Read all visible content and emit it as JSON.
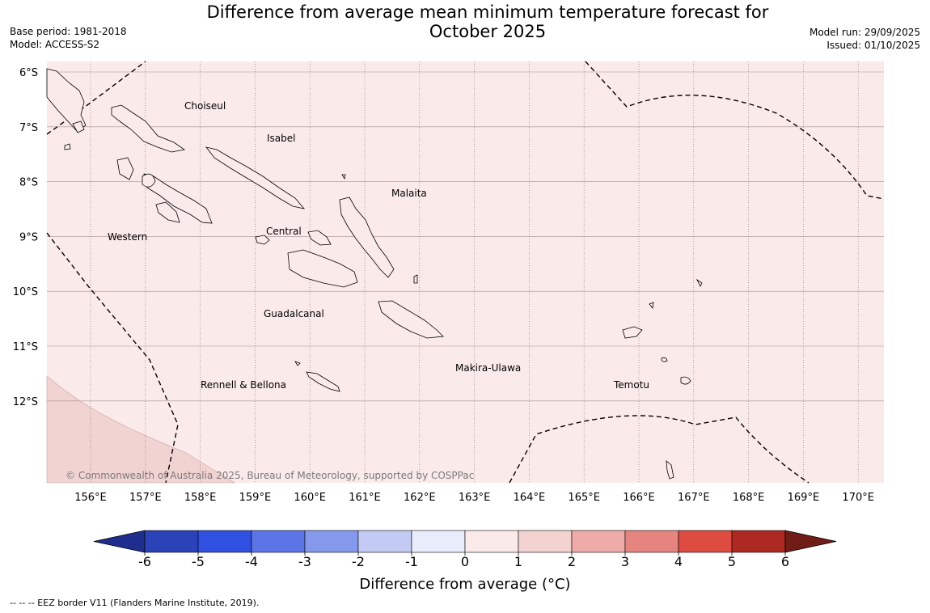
{
  "title": {
    "line1": "Difference from average mean minimum temperature forecast for",
    "line2": "October 2025"
  },
  "meta_left": {
    "base_period": "Base period: 1981-2018",
    "model": "Model: ACCESS-S2"
  },
  "meta_right": {
    "model_run": "Model run: 29/09/2025",
    "issued": "Issued: 01/10/2025"
  },
  "map": {
    "background_color": "#fbeaea",
    "anomaly_shade_color": "#f1d3d2",
    "lat_labels": [
      "6°S",
      "7°S",
      "8°S",
      "9°S",
      "10°S",
      "11°S",
      "12°S"
    ],
    "lon_labels": [
      "156°E",
      "157°E",
      "158°E",
      "159°E",
      "160°E",
      "161°E",
      "162°E",
      "163°E",
      "164°E",
      "165°E",
      "166°E",
      "167°E",
      "168°E",
      "169°E",
      "170°E"
    ],
    "region_labels": [
      "Choiseul",
      "Isabel",
      "Malaita",
      "Western",
      "Central",
      "Guadalcanal",
      "Makira-Ulawa",
      "Rennell & Bellona",
      "Temotu"
    ],
    "copyright": "© Commonwealth of Australia 2025, Bureau of Meteorology, supported by COSPPac"
  },
  "colorbar": {
    "ticks": [
      "-6",
      "-5",
      "-4",
      "-3",
      "-2",
      "-1",
      "0",
      "1",
      "2",
      "3",
      "4",
      "5",
      "6"
    ],
    "colors": [
      "#1f2d8f",
      "#2a43b8",
      "#2f50e0",
      "#5b75e6",
      "#8499ec",
      "#c3cbf5",
      "#e8ecfb",
      "#fbeaea",
      "#f2d3d1",
      "#eeabaa",
      "#e6857f",
      "#dd4b41",
      "#ad2a22",
      "#701c17"
    ],
    "label": "Difference from average (°C)"
  },
  "footer": {
    "eez_note": "--  --  -- EEZ border V11 (Flanders Marine Institute, 2019)."
  }
}
